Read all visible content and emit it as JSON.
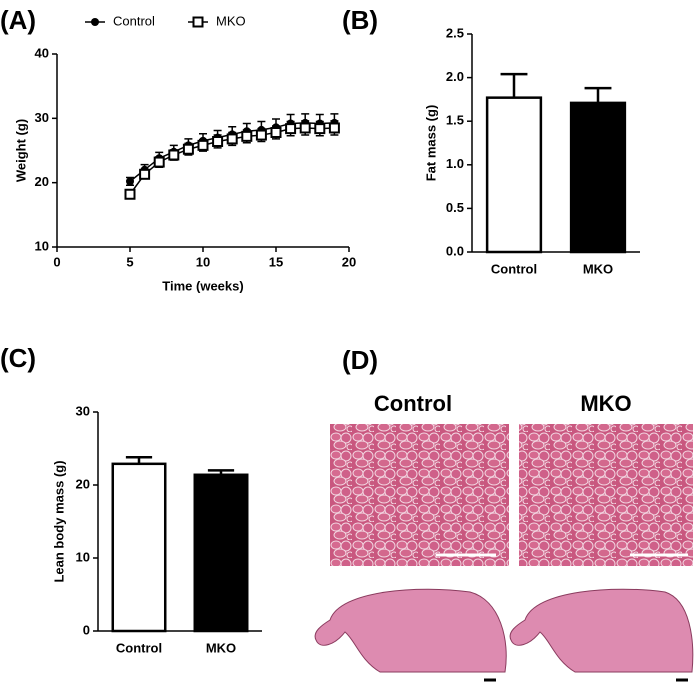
{
  "chart_data": [
    {
      "type": "line",
      "panel_label": "(A)",
      "xlabel": "Time (weeks)",
      "ylabel": "Weight (g)",
      "x": [
        5,
        6,
        7,
        8,
        9,
        10,
        11,
        12,
        13,
        14,
        15,
        16,
        17,
        18,
        19
      ],
      "series": [
        {
          "name": "Control",
          "color": "#000000",
          "marker": "circle",
          "values": [
            20.2,
            22,
            23.8,
            24.8,
            25.8,
            26.5,
            27,
            27.5,
            28,
            28.2,
            28.6,
            29.2,
            29.3,
            29.2,
            29.3
          ],
          "errors": [
            0.6,
            0.8,
            0.9,
            1,
            1,
            1.1,
            1.1,
            1.2,
            1.2,
            1.3,
            1.3,
            1.4,
            1.4,
            1.4,
            1.4
          ]
        },
        {
          "name": "MKO",
          "color": "#000000",
          "marker": "square",
          "values": [
            18.2,
            21.3,
            23.2,
            24.3,
            25.2,
            25.8,
            26.4,
            26.8,
            27.2,
            27.4,
            27.8,
            28.4,
            28.5,
            28.4,
            28.5
          ],
          "errors": [
            0.6,
            0.7,
            0.8,
            0.8,
            0.9,
            0.9,
            1,
            1,
            1,
            1,
            1,
            1.1,
            1.1,
            1.1,
            1.1
          ]
        }
      ],
      "xlim": [
        0,
        20
      ],
      "xticks": [
        0,
        5,
        10,
        15,
        20
      ],
      "ylim": [
        10,
        40
      ],
      "yticks": [
        10,
        20,
        30,
        40
      ]
    },
    {
      "type": "bar",
      "panel_label": "(B)",
      "ylabel": "Fat mass (g)",
      "categories": [
        "Control",
        "MKO"
      ],
      "values": [
        1.77,
        1.71
      ],
      "errors": [
        0.27,
        0.17
      ],
      "colors": [
        "#ffffff",
        "#000000"
      ],
      "ylim": [
        0,
        2.5
      ],
      "yticks": [
        {
          "value": 0,
          "label": "0.0"
        },
        0.5,
        {
          "value": 1,
          "label": "1.0"
        },
        1.5,
        {
          "value": 2,
          "label": "2.0"
        },
        2.5
      ]
    },
    {
      "type": "bar",
      "panel_label": "(C)",
      "ylabel": "Lean body mass (g)",
      "categories": [
        "Control",
        "MKO"
      ],
      "values": [
        22.9,
        21.4
      ],
      "errors": [
        0.9,
        0.6
      ],
      "colors": [
        "#ffffff",
        "#000000"
      ],
      "ylim": [
        0,
        30
      ],
      "yticks": [
        0,
        10,
        20,
        30
      ]
    }
  ],
  "panel_d": {
    "label": "(D)",
    "columns": [
      "Control",
      "MKO"
    ]
  }
}
